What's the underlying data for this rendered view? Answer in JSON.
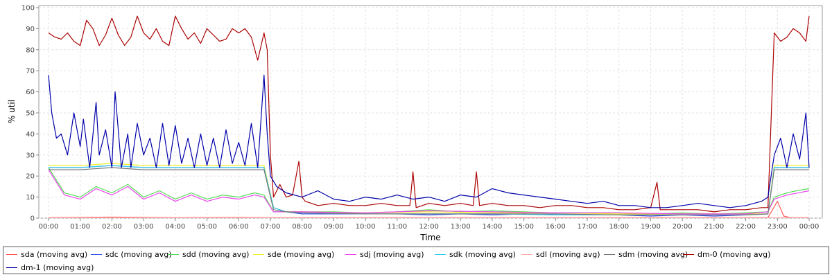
{
  "chart_data": {
    "type": "line",
    "title": "",
    "xlabel": "Time",
    "ylabel": "% util",
    "ylim": [
      0,
      100
    ],
    "yticks": [
      0,
      10,
      20,
      30,
      40,
      50,
      60,
      70,
      80,
      90,
      100
    ],
    "xlim": [
      0,
      24
    ],
    "xticks": [
      "00:00",
      "01:00",
      "02:00",
      "03:00",
      "04:00",
      "05:00",
      "06:00",
      "07:00",
      "08:00",
      "09:00",
      "10:00",
      "11:00",
      "12:00",
      "13:00",
      "14:00",
      "15:00",
      "16:00",
      "17:00",
      "18:00",
      "19:00",
      "20:00",
      "21:00",
      "22:00",
      "23:00",
      "00:00"
    ],
    "grid": true,
    "legend_position": "bottom",
    "series": [
      {
        "name": "sda (moving avg)",
        "color": "#ff5555",
        "x": [
          0,
          2,
          4,
          6,
          7,
          9,
          12,
          15,
          18,
          21,
          22.7,
          23.0,
          23.2,
          23.4,
          23.6,
          24
        ],
        "y": [
          0.3,
          0.5,
          0.3,
          0.4,
          0.3,
          0.3,
          0.3,
          0.3,
          0.3,
          0.3,
          0.3,
          8,
          1,
          0.3,
          0.3,
          0.3
        ]
      },
      {
        "name": "sdc (moving avg)",
        "color": "#3355ee",
        "x": [
          0,
          1,
          2,
          3,
          4,
          5,
          6,
          6.8,
          7.1,
          7.5,
          8,
          9,
          10,
          11,
          12,
          13,
          14,
          15,
          16,
          17,
          18,
          19,
          20,
          21,
          22,
          22.7,
          22.9,
          23.5,
          24
        ],
        "y": [
          24,
          24,
          25,
          24,
          24,
          24,
          24,
          24,
          5,
          3,
          2,
          2,
          2,
          2,
          1.5,
          2,
          1.5,
          2,
          1.5,
          1.5,
          1.5,
          1,
          1.5,
          1,
          1.5,
          2,
          24,
          24,
          24
        ]
      },
      {
        "name": "sdd (moving avg)",
        "color": "#55dd55",
        "x": [
          0,
          0.5,
          1,
          1.5,
          2,
          2.5,
          3,
          3.5,
          4,
          4.5,
          5,
          5.5,
          6,
          6.5,
          6.8,
          7.1,
          7.5,
          8,
          9,
          10,
          11,
          12,
          13,
          14,
          15,
          16,
          17,
          18,
          19,
          20,
          21,
          22,
          22.7,
          22.9,
          23.3,
          23.6,
          24
        ],
        "y": [
          24,
          12,
          10,
          15,
          12,
          16,
          10,
          13,
          9,
          12,
          9,
          11,
          10,
          12,
          11,
          3,
          3,
          3,
          3,
          2.5,
          3,
          4,
          3,
          3.5,
          3,
          2.5,
          2.5,
          2.5,
          2,
          2.5,
          2,
          2.5,
          3,
          10,
          12,
          13,
          14
        ]
      },
      {
        "name": "sde (moving avg)",
        "color": "#eeee22",
        "x": [
          0,
          1,
          2,
          3,
          4,
          5,
          6,
          6.8,
          7.1,
          7.5,
          8,
          10,
          12,
          14,
          16,
          18,
          20,
          22,
          22.7,
          22.9,
          24
        ],
        "y": [
          25,
          25,
          26,
          25,
          25,
          25,
          25,
          25,
          5,
          3,
          3,
          2.5,
          3,
          2.5,
          2.5,
          2,
          2,
          2,
          2,
          25,
          25
        ]
      },
      {
        "name": "sdj (moving avg)",
        "color": "#ee44ee",
        "x": [
          0,
          0.5,
          1,
          1.5,
          2,
          2.5,
          3,
          3.5,
          4,
          4.5,
          5,
          5.5,
          6,
          6.5,
          6.8,
          7.1,
          7.5,
          8,
          10,
          12,
          14,
          16,
          18,
          20,
          22,
          22.7,
          22.9,
          23.3,
          24
        ],
        "y": [
          23,
          11,
          9,
          14,
          11,
          15,
          9,
          12,
          8,
          11,
          8,
          10,
          9,
          11,
          10,
          3,
          3,
          3,
          2.5,
          3.5,
          3,
          2.5,
          2.5,
          2,
          2,
          3,
          9,
          11,
          13
        ]
      },
      {
        "name": "sdk (moving avg)",
        "color": "#33ccee",
        "x": [
          0,
          1,
          2,
          3,
          4,
          5,
          6,
          6.8,
          7.1,
          7.5,
          8,
          10,
          12,
          14,
          16,
          18,
          20,
          22,
          22.7,
          22.9,
          24
        ],
        "y": [
          24,
          24,
          25,
          24,
          24,
          24,
          24,
          24,
          5,
          3,
          2.5,
          2,
          2,
          2,
          1.5,
          1.5,
          1.5,
          1.5,
          2,
          24,
          24
        ]
      },
      {
        "name": "sdl (moving avg)",
        "color": "#ffaaaa",
        "x": [
          0,
          4,
          8,
          12,
          16,
          20,
          24
        ],
        "y": [
          0.2,
          0.2,
          0.2,
          0.2,
          0.2,
          0.2,
          0.2
        ]
      },
      {
        "name": "sdm (moving avg)",
        "color": "#777777",
        "x": [
          0,
          1,
          2,
          3,
          4,
          5,
          6,
          6.8,
          7.1,
          7.5,
          8,
          10,
          12,
          14,
          16,
          18,
          20,
          22,
          22.7,
          22.9,
          24
        ],
        "y": [
          23,
          23,
          24,
          23,
          23,
          23,
          23,
          23,
          4,
          3,
          2.5,
          2,
          2,
          2,
          2,
          1.5,
          1.5,
          1.5,
          2,
          23,
          23
        ]
      },
      {
        "name": "dm-0 (moving avg)",
        "color": "#aa0000",
        "x": [
          0,
          0.2,
          0.4,
          0.6,
          0.8,
          1.0,
          1.2,
          1.4,
          1.6,
          1.8,
          2.0,
          2.2,
          2.4,
          2.6,
          2.8,
          3.0,
          3.2,
          3.4,
          3.6,
          3.8,
          4.0,
          4.2,
          4.4,
          4.6,
          4.8,
          5.0,
          5.2,
          5.4,
          5.6,
          5.8,
          6.0,
          6.2,
          6.4,
          6.6,
          6.8,
          6.9,
          7.0,
          7.1,
          7.3,
          7.5,
          7.7,
          7.9,
          8.0,
          8.1,
          8.3,
          8.5,
          9.0,
          9.5,
          10.0,
          10.5,
          11.0,
          11.4,
          11.5,
          11.6,
          12.0,
          12.5,
          13.0,
          13.4,
          13.5,
          13.6,
          14.0,
          14.5,
          15.0,
          15.5,
          16.0,
          16.5,
          17.0,
          17.5,
          18.0,
          18.5,
          19.0,
          19.2,
          19.3,
          19.4,
          20.0,
          20.5,
          21.0,
          21.5,
          22.0,
          22.5,
          22.7,
          22.9,
          23.1,
          23.3,
          23.5,
          23.7,
          23.9,
          24.0
        ],
        "y": [
          88,
          86,
          85,
          88,
          84,
          82,
          94,
          90,
          82,
          87,
          95,
          87,
          82,
          86,
          96,
          88,
          85,
          90,
          84,
          82,
          96,
          90,
          85,
          88,
          83,
          90,
          87,
          84,
          85,
          90,
          88,
          90,
          86,
          75,
          88,
          80,
          30,
          10,
          16,
          10,
          11,
          27,
          10,
          8,
          7,
          6,
          7,
          6,
          6,
          7,
          6,
          6,
          22,
          5,
          7,
          6,
          7,
          6,
          22,
          6,
          7,
          6,
          6,
          5,
          6,
          6,
          5,
          5,
          4,
          4,
          5,
          17,
          4,
          4,
          4,
          4,
          3,
          4,
          4,
          5,
          5,
          88,
          84,
          86,
          90,
          88,
          84,
          96
        ]
      },
      {
        "name": "dm-1 (moving avg)",
        "color": "#0000aa",
        "x": [
          0,
          0.1,
          0.25,
          0.4,
          0.6,
          0.8,
          1.0,
          1.1,
          1.3,
          1.5,
          1.6,
          1.8,
          2.0,
          2.1,
          2.3,
          2.5,
          2.6,
          2.8,
          3.0,
          3.2,
          3.4,
          3.6,
          3.8,
          4.0,
          4.2,
          4.4,
          4.6,
          4.8,
          5.0,
          5.2,
          5.4,
          5.6,
          5.8,
          6.0,
          6.2,
          6.4,
          6.6,
          6.8,
          6.9,
          7.0,
          7.2,
          7.5,
          8.0,
          8.5,
          9.0,
          9.5,
          10.0,
          10.5,
          11.0,
          11.5,
          12.0,
          12.5,
          13.0,
          13.5,
          14.0,
          14.5,
          15.0,
          15.5,
          16.0,
          16.5,
          17.0,
          17.5,
          18.0,
          18.5,
          19.0,
          19.5,
          20.0,
          20.5,
          21.0,
          21.5,
          22.0,
          22.5,
          22.7,
          22.9,
          23.1,
          23.3,
          23.5,
          23.7,
          23.9,
          24.0
        ],
        "y": [
          68,
          50,
          38,
          40,
          30,
          50,
          34,
          47,
          24,
          55,
          30,
          42,
          24,
          60,
          24,
          40,
          24,
          45,
          30,
          38,
          24,
          45,
          25,
          44,
          26,
          38,
          24,
          40,
          25,
          38,
          24,
          42,
          26,
          36,
          25,
          45,
          24,
          68,
          40,
          20,
          15,
          12,
          10,
          13,
          9,
          8,
          10,
          9,
          11,
          9,
          10,
          8,
          11,
          10,
          14,
          12,
          11,
          10,
          9,
          8,
          7,
          8,
          6,
          6,
          5,
          5,
          6,
          7,
          6,
          5,
          6,
          8,
          10,
          30,
          38,
          24,
          40,
          28,
          50,
          24
        ]
      }
    ]
  }
}
